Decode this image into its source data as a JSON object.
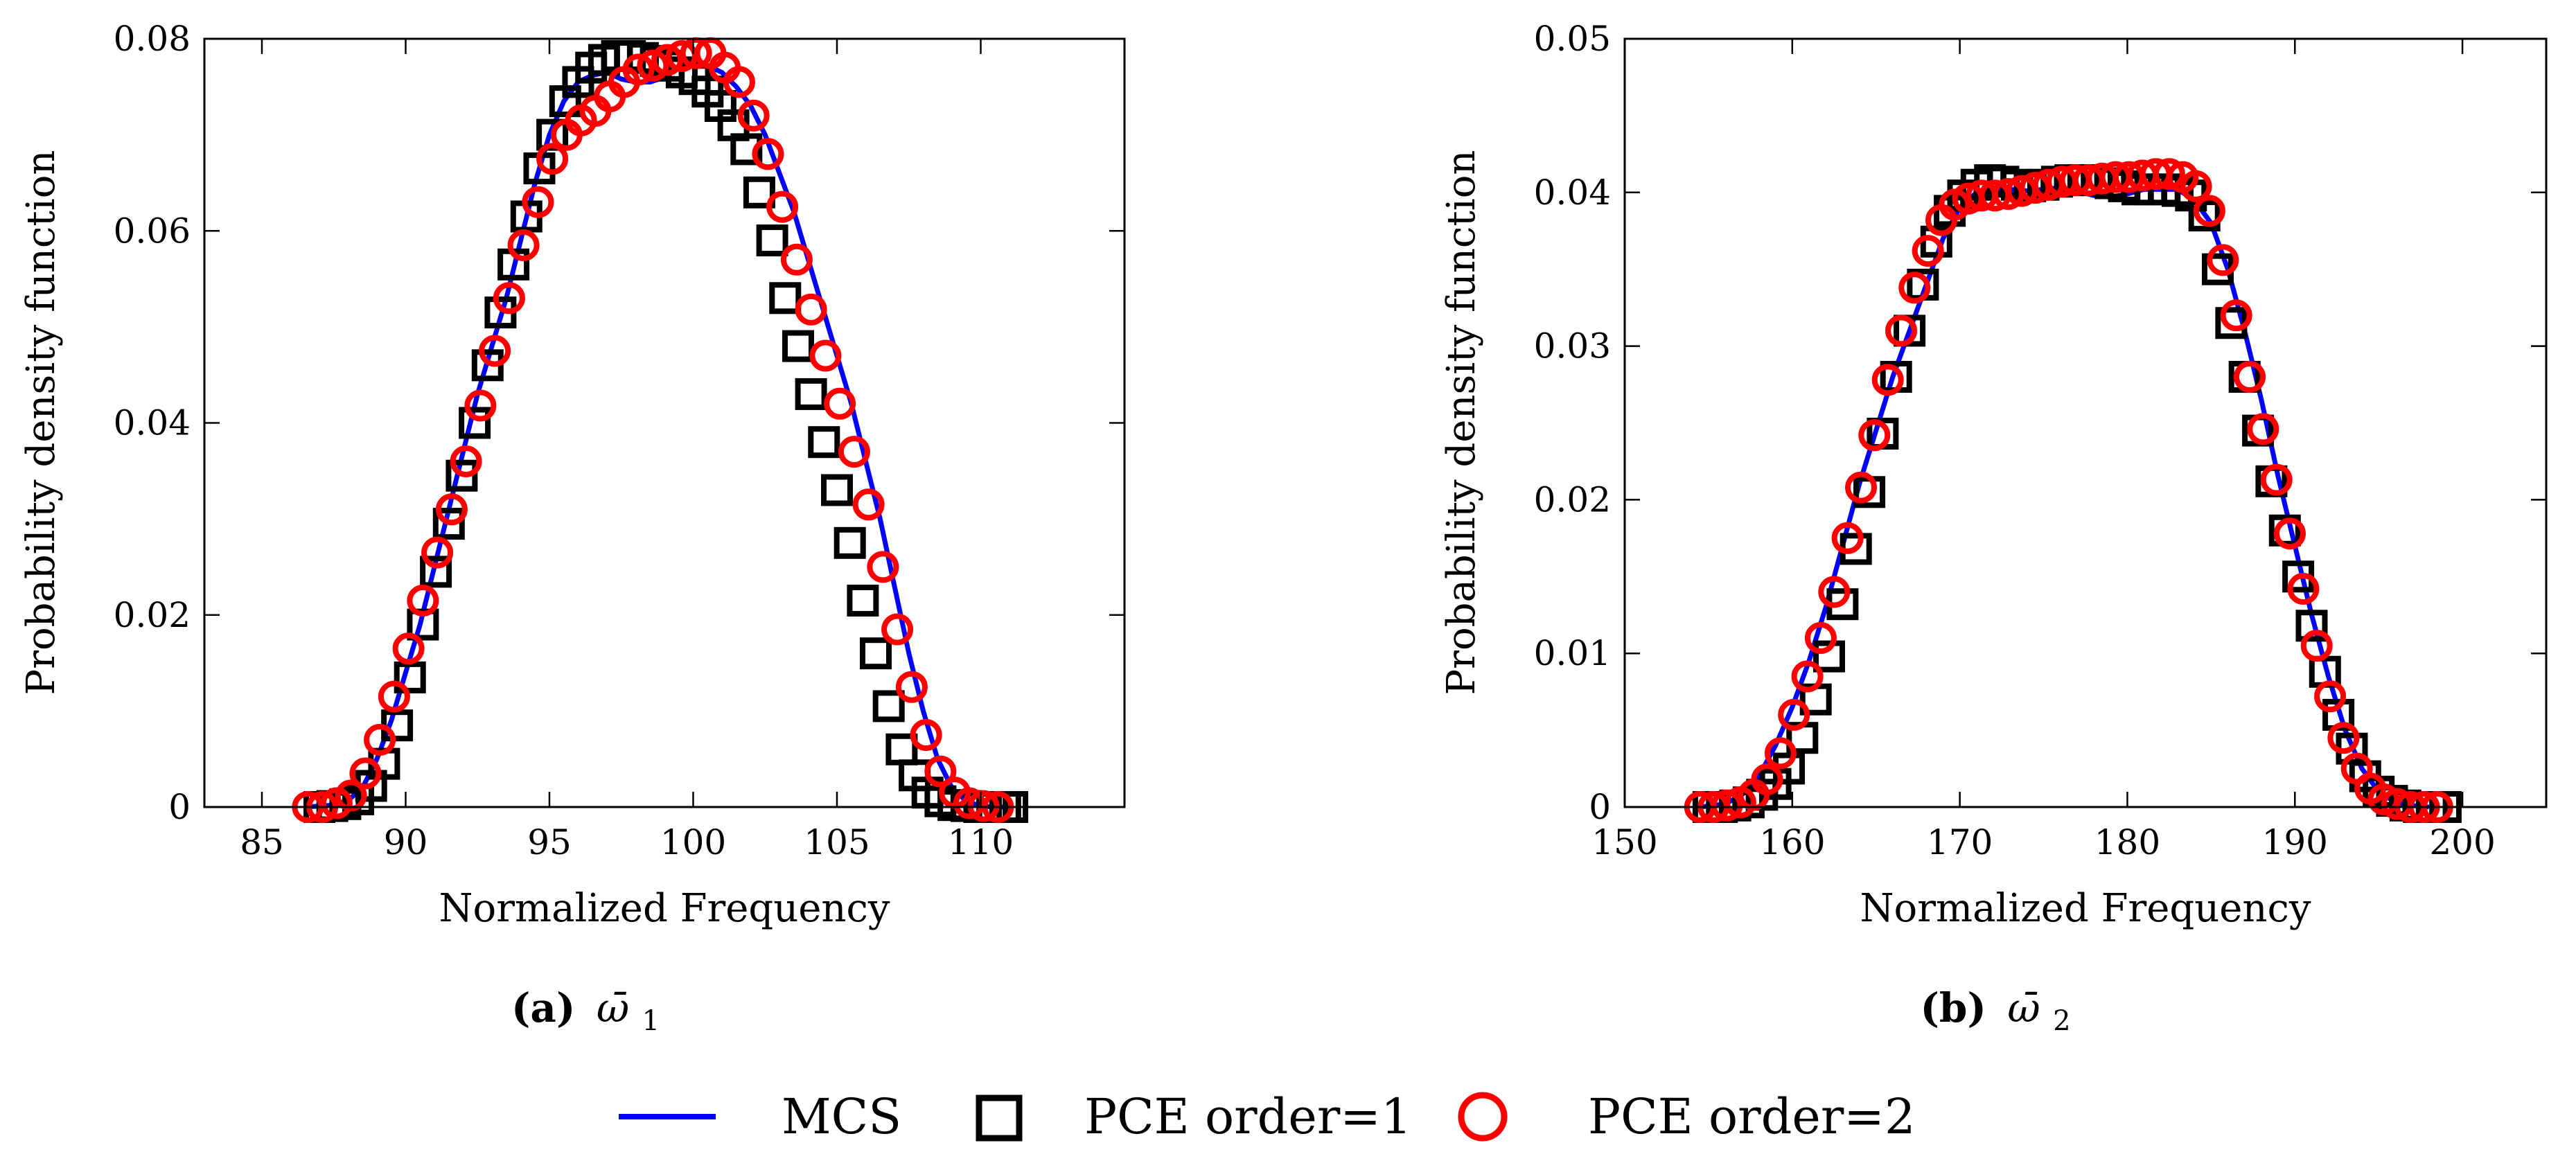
{
  "legend": [
    {
      "label": "MCS",
      "style": "line",
      "color": "#0000ff"
    },
    {
      "label": "PCE order=1",
      "style": "square",
      "color": "#000000"
    },
    {
      "label": "PCE order=2",
      "style": "circle",
      "color": "#ff0000"
    }
  ],
  "chart_data": [
    {
      "type": "line",
      "caption_label": "(a)",
      "caption_symbol": "ω̄",
      "caption_subscript": "1",
      "xlabel": "Normalized Frequency",
      "ylabel": "Probability density function",
      "xlim": [
        83,
        115
      ],
      "ylim": [
        0,
        0.08
      ],
      "xticks": [
        85,
        90,
        95,
        100,
        105,
        110
      ],
      "xtick_labels": [
        "85",
        "90",
        "95",
        "100",
        "105",
        "110"
      ],
      "yticks": [
        0,
        0.02,
        0.04,
        0.06,
        0.08
      ],
      "ytick_labels": [
        "0",
        "0.02",
        "0.04",
        "0.06",
        "0.08"
      ],
      "series": [
        {
          "name": "MCS",
          "style": "line",
          "x": [
            86.5,
            87.5,
            88.0,
            88.5,
            89.0,
            89.5,
            90.0,
            90.5,
            91.0,
            91.5,
            92.0,
            92.5,
            93.0,
            93.5,
            94.0,
            94.5,
            95.0,
            95.5,
            96.0,
            96.5,
            97.0,
            97.5,
            98.0,
            98.5,
            99.0,
            99.5,
            100.0,
            100.5,
            101.0,
            101.5,
            102.0,
            102.5,
            103.0,
            103.5,
            104.0,
            104.5,
            105.0,
            105.5,
            106.0,
            106.5,
            107.0,
            107.5,
            108.0,
            108.5,
            109.0,
            109.5,
            110.0,
            110.5,
            111.0
          ],
          "y": [
            0.0,
            0.0002,
            0.0007,
            0.002,
            0.005,
            0.009,
            0.014,
            0.019,
            0.025,
            0.031,
            0.037,
            0.043,
            0.048,
            0.053,
            0.059,
            0.065,
            0.07,
            0.0735,
            0.0755,
            0.0762,
            0.0765,
            0.0758,
            0.0755,
            0.0755,
            0.076,
            0.077,
            0.0775,
            0.0772,
            0.0765,
            0.075,
            0.073,
            0.07,
            0.066,
            0.062,
            0.057,
            0.052,
            0.047,
            0.042,
            0.036,
            0.03,
            0.023,
            0.016,
            0.01,
            0.005,
            0.002,
            0.0006,
            0.0001,
            0.0,
            0.0
          ]
        },
        {
          "name": "PCE order=1",
          "style": "square",
          "x": [
            87.0,
            87.45,
            87.9,
            88.35,
            88.8,
            89.25,
            89.7,
            90.15,
            90.6,
            91.05,
            91.5,
            91.95,
            92.4,
            92.85,
            93.3,
            93.75,
            94.2,
            94.65,
            95.1,
            95.55,
            96.0,
            96.45,
            96.9,
            97.35,
            97.8,
            98.25,
            98.7,
            99.15,
            99.6,
            100.05,
            100.5,
            100.95,
            101.4,
            101.85,
            102.3,
            102.75,
            103.2,
            103.65,
            104.1,
            104.55,
            105.0,
            105.45,
            105.9,
            106.35,
            106.8,
            107.25,
            107.7,
            108.15,
            108.6,
            109.05,
            109.5,
            109.95,
            110.4,
            110.85,
            111.1
          ],
          "y": [
            0.0,
            0.0001,
            0.0003,
            0.0008,
            0.0022,
            0.0045,
            0.0085,
            0.0135,
            0.019,
            0.0245,
            0.0295,
            0.0345,
            0.04,
            0.046,
            0.0515,
            0.0565,
            0.0615,
            0.0665,
            0.07,
            0.0735,
            0.0755,
            0.077,
            0.0778,
            0.0782,
            0.0782,
            0.078,
            0.0777,
            0.0772,
            0.0765,
            0.0758,
            0.0745,
            0.073,
            0.071,
            0.0685,
            0.064,
            0.059,
            0.053,
            0.048,
            0.043,
            0.038,
            0.033,
            0.0275,
            0.0215,
            0.016,
            0.0105,
            0.006,
            0.0033,
            0.0015,
            0.0006,
            0.0002,
            0.0001,
            0.0,
            0.0,
            0.0,
            0.0
          ]
        },
        {
          "name": "PCE order=2",
          "style": "circle",
          "x": [
            86.6,
            87.1,
            87.6,
            88.1,
            88.6,
            89.1,
            89.6,
            90.1,
            90.6,
            91.1,
            91.6,
            92.1,
            92.6,
            93.1,
            93.6,
            94.1,
            94.6,
            95.1,
            95.6,
            96.1,
            96.6,
            97.1,
            97.6,
            98.1,
            98.6,
            99.1,
            99.6,
            100.1,
            100.6,
            101.1,
            101.6,
            102.1,
            102.6,
            103.1,
            103.6,
            104.1,
            104.6,
            105.1,
            105.6,
            106.1,
            106.6,
            107.1,
            107.6,
            108.1,
            108.6,
            109.1,
            109.6,
            110.1,
            110.6
          ],
          "y": [
            0.0,
            0.0,
            0.0004,
            0.0012,
            0.0035,
            0.007,
            0.0115,
            0.0165,
            0.0215,
            0.0265,
            0.031,
            0.036,
            0.0418,
            0.0475,
            0.053,
            0.0585,
            0.063,
            0.0675,
            0.07,
            0.0715,
            0.0725,
            0.074,
            0.0755,
            0.0768,
            0.0772,
            0.0778,
            0.0782,
            0.0785,
            0.0785,
            0.077,
            0.0755,
            0.072,
            0.068,
            0.0625,
            0.057,
            0.0518,
            0.047,
            0.042,
            0.037,
            0.0315,
            0.025,
            0.0185,
            0.0125,
            0.0075,
            0.0037,
            0.0015,
            0.0004,
            0.0001,
            0.0
          ]
        }
      ]
    },
    {
      "type": "line",
      "caption_label": "(b)",
      "caption_symbol": "ω̄",
      "caption_subscript": "2",
      "xlabel": "Normalized Frequency",
      "ylabel": "Probability density function",
      "xlim": [
        150,
        205
      ],
      "ylim": [
        0,
        0.05
      ],
      "xticks": [
        150,
        160,
        170,
        180,
        190,
        200
      ],
      "xtick_labels": [
        "150",
        "160",
        "170",
        "180",
        "190",
        "200"
      ],
      "yticks": [
        0,
        0.01,
        0.02,
        0.03,
        0.04,
        0.05
      ],
      "ytick_labels": [
        "0",
        "0.01",
        "0.02",
        "0.03",
        "0.04",
        "0.05"
      ],
      "series": [
        {
          "name": "MCS",
          "style": "line",
          "x": [
            154.5,
            156.0,
            157.0,
            158.0,
            159.0,
            160.0,
            161.0,
            162.0,
            163.0,
            164.0,
            165.0,
            166.0,
            167.0,
            168.0,
            169.0,
            170.0,
            171.0,
            172.0,
            173.0,
            174.0,
            175.0,
            176.0,
            177.0,
            178.0,
            179.0,
            180.0,
            181.0,
            182.0,
            183.0,
            184.0,
            185.0,
            186.0,
            187.0,
            188.0,
            189.0,
            190.0,
            191.0,
            192.0,
            193.0,
            194.0,
            195.0,
            196.0,
            197.0,
            198.0
          ],
          "y": [
            0.0,
            0.0002,
            0.0008,
            0.002,
            0.004,
            0.0065,
            0.0095,
            0.013,
            0.017,
            0.021,
            0.0245,
            0.028,
            0.031,
            0.034,
            0.037,
            0.039,
            0.04,
            0.0403,
            0.0402,
            0.0401,
            0.0402,
            0.0403,
            0.0401,
            0.0398,
            0.0397,
            0.0399,
            0.0402,
            0.0402,
            0.0402,
            0.0395,
            0.038,
            0.035,
            0.031,
            0.0265,
            0.0215,
            0.017,
            0.0125,
            0.0085,
            0.005,
            0.0025,
            0.001,
            0.0003,
            0.0001,
            0.0
          ]
        },
        {
          "name": "PCE order=1",
          "style": "square",
          "x": [
            155.0,
            155.8,
            156.6,
            157.4,
            158.2,
            159.0,
            159.8,
            160.6,
            161.4,
            162.2,
            163.0,
            163.8,
            164.6,
            165.4,
            166.2,
            167.0,
            167.8,
            168.6,
            169.4,
            170.2,
            171.0,
            171.8,
            172.6,
            173.4,
            174.2,
            175.0,
            175.8,
            176.6,
            177.4,
            178.2,
            179.0,
            179.8,
            180.6,
            181.4,
            182.2,
            183.0,
            183.8,
            184.6,
            185.4,
            186.2,
            187.0,
            187.8,
            188.6,
            189.4,
            190.2,
            191.0,
            191.8,
            192.6,
            193.4,
            194.2,
            195.0,
            195.8,
            196.6,
            197.4,
            198.2,
            199.0
          ],
          "y": [
            0.0,
            0.0,
            0.0001,
            0.0003,
            0.0008,
            0.0015,
            0.0025,
            0.0045,
            0.007,
            0.0098,
            0.0132,
            0.0168,
            0.0205,
            0.0243,
            0.028,
            0.031,
            0.034,
            0.0368,
            0.0388,
            0.0398,
            0.0405,
            0.0408,
            0.0407,
            0.0405,
            0.0404,
            0.0405,
            0.0407,
            0.0408,
            0.0408,
            0.0408,
            0.0406,
            0.0404,
            0.0402,
            0.0402,
            0.0402,
            0.0401,
            0.0398,
            0.0385,
            0.035,
            0.0315,
            0.028,
            0.0245,
            0.0212,
            0.018,
            0.015,
            0.0118,
            0.0088,
            0.006,
            0.0038,
            0.002,
            0.001,
            0.0004,
            0.0001,
            0.0,
            0.0,
            0.0
          ]
        },
        {
          "name": "PCE order=2",
          "style": "circle",
          "x": [
            154.5,
            155.3,
            156.1,
            156.9,
            157.7,
            158.5,
            159.3,
            160.1,
            160.9,
            161.7,
            162.5,
            163.3,
            164.1,
            164.9,
            165.7,
            166.5,
            167.3,
            168.1,
            168.9,
            169.7,
            170.5,
            171.3,
            172.1,
            172.9,
            173.7,
            174.5,
            175.3,
            176.1,
            176.9,
            177.7,
            178.5,
            179.3,
            180.1,
            180.9,
            181.7,
            182.5,
            183.3,
            184.1,
            184.9,
            185.7,
            186.5,
            187.3,
            188.1,
            188.9,
            189.7,
            190.5,
            191.3,
            192.1,
            192.9,
            193.7,
            194.5,
            195.3,
            196.1,
            196.9,
            197.7,
            198.5
          ],
          "y": [
            0.0,
            0.0,
            0.0001,
            0.0003,
            0.0008,
            0.0018,
            0.0035,
            0.006,
            0.0085,
            0.011,
            0.014,
            0.0175,
            0.0208,
            0.0242,
            0.0278,
            0.031,
            0.0338,
            0.0362,
            0.0382,
            0.0392,
            0.0396,
            0.0398,
            0.0398,
            0.0399,
            0.0401,
            0.0403,
            0.0405,
            0.0407,
            0.0408,
            0.0408,
            0.0409,
            0.041,
            0.041,
            0.0411,
            0.0412,
            0.0412,
            0.041,
            0.0404,
            0.0388,
            0.0356,
            0.032,
            0.028,
            0.0246,
            0.0213,
            0.0178,
            0.0142,
            0.0105,
            0.0072,
            0.0045,
            0.0025,
            0.0012,
            0.0005,
            0.0002,
            0.0,
            0.0,
            0.0
          ]
        }
      ]
    }
  ]
}
